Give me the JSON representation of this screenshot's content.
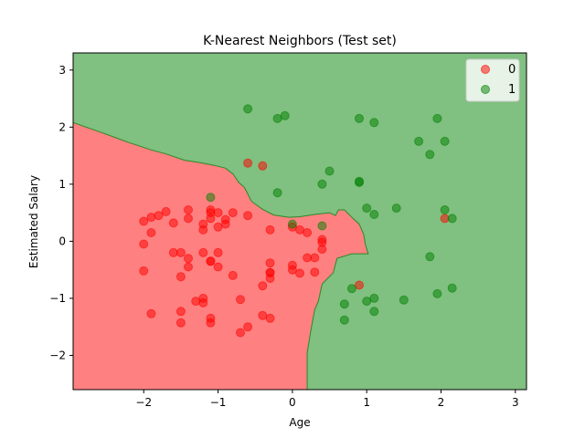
{
  "chart_data": {
    "type": "scatter",
    "title": "K-Nearest Neighbors (Test set)",
    "xlabel": "Age",
    "ylabel": "Estimated Salary",
    "xlim": [
      -2.95,
      3.15
    ],
    "ylim": [
      -2.6,
      3.3
    ],
    "xticks": [
      -2,
      -1,
      0,
      1,
      2,
      3
    ],
    "yticks": [
      -2,
      -1,
      0,
      1,
      2,
      3
    ],
    "grid": false,
    "legend_position": "top-right",
    "background_regions": [
      {
        "class": "0",
        "color": "#ff8080"
      },
      {
        "class": "1",
        "color": "#80c080"
      }
    ],
    "boundary_polygon_class0": [
      [
        -2.95,
        2.08
      ],
      [
        -2.6,
        1.92
      ],
      [
        -2.2,
        1.73
      ],
      [
        -1.9,
        1.6
      ],
      [
        -1.7,
        1.53
      ],
      [
        -1.45,
        1.42
      ],
      [
        -1.25,
        1.38
      ],
      [
        -1.05,
        1.33
      ],
      [
        -0.9,
        1.28
      ],
      [
        -0.8,
        1.18
      ],
      [
        -0.72,
        1.03
      ],
      [
        -0.65,
        0.95
      ],
      [
        -0.62,
        0.88
      ],
      [
        -0.55,
        0.7
      ],
      [
        -0.4,
        0.56
      ],
      [
        -0.25,
        0.46
      ],
      [
        -0.05,
        0.42
      ],
      [
        0.1,
        0.43
      ],
      [
        0.3,
        0.47
      ],
      [
        0.5,
        0.5
      ],
      [
        0.58,
        0.45
      ],
      [
        0.62,
        0.55
      ],
      [
        0.7,
        0.55
      ],
      [
        0.8,
        0.42
      ],
      [
        0.9,
        0.3
      ],
      [
        0.96,
        0.12
      ],
      [
        0.98,
        -0.05
      ],
      [
        1.02,
        -0.22
      ],
      [
        0.8,
        -0.22
      ],
      [
        0.6,
        -0.3
      ],
      [
        0.55,
        -0.55
      ],
      [
        0.4,
        -0.75
      ],
      [
        0.35,
        -1.05
      ],
      [
        0.3,
        -1.2
      ],
      [
        0.25,
        -1.55
      ],
      [
        0.2,
        -1.95
      ],
      [
        0.2,
        -2.6
      ],
      [
        -2.95,
        -2.6
      ]
    ],
    "series": [
      {
        "name": "0",
        "color": "#ff0000",
        "points": [
          [
            -2.0,
            0.35
          ],
          [
            -1.9,
            0.42
          ],
          [
            -1.8,
            0.45
          ],
          [
            -1.7,
            0.52
          ],
          [
            -1.6,
            0.32
          ],
          [
            -1.4,
            0.55
          ],
          [
            -1.4,
            0.4
          ],
          [
            -1.2,
            0.3
          ],
          [
            -1.1,
            0.55
          ],
          [
            -1.1,
            0.5
          ],
          [
            -1.1,
            0.4
          ],
          [
            -1.0,
            0.5
          ],
          [
            -0.9,
            0.38
          ],
          [
            -0.8,
            0.5
          ],
          [
            -0.9,
            0.3
          ],
          [
            -0.6,
            0.45
          ],
          [
            -1.2,
            0.2
          ],
          [
            -1.0,
            0.25
          ],
          [
            -0.3,
            0.2
          ],
          [
            0.0,
            0.25
          ],
          [
            0.1,
            0.2
          ],
          [
            0.2,
            0.15
          ],
          [
            -2.0,
            -0.05
          ],
          [
            -1.9,
            0.15
          ],
          [
            -1.6,
            -0.2
          ],
          [
            -1.5,
            -0.2
          ],
          [
            -1.4,
            -0.3
          ],
          [
            -1.4,
            -0.45
          ],
          [
            -1.5,
            -0.62
          ],
          [
            -1.2,
            -0.2
          ],
          [
            -1.0,
            -0.2
          ],
          [
            -1.1,
            -0.35
          ],
          [
            -1.1,
            -0.35
          ],
          [
            -1.0,
            -0.45
          ],
          [
            -0.8,
            -0.6
          ],
          [
            -0.3,
            -0.38
          ],
          [
            -0.3,
            -0.55
          ],
          [
            -0.3,
            -0.65
          ],
          [
            -0.4,
            -0.78
          ],
          [
            0.0,
            -0.42
          ],
          [
            0.0,
            -0.5
          ],
          [
            0.1,
            -0.56
          ],
          [
            0.2,
            -0.29
          ],
          [
            0.3,
            -0.29
          ],
          [
            0.3,
            -0.54
          ],
          [
            0.4,
            -0.14
          ],
          [
            0.4,
            0.03
          ],
          [
            0.4,
            -0.02
          ],
          [
            -2.0,
            -0.52
          ],
          [
            -1.9,
            -1.27
          ],
          [
            -1.5,
            -1.23
          ],
          [
            -1.5,
            -1.43
          ],
          [
            -1.3,
            -1.05
          ],
          [
            -1.2,
            -1.0
          ],
          [
            -1.2,
            -1.08
          ],
          [
            -1.1,
            -1.43
          ],
          [
            -1.1,
            -1.35
          ],
          [
            -0.7,
            -1.02
          ],
          [
            -0.7,
            -1.6
          ],
          [
            -0.6,
            -1.5
          ],
          [
            -0.4,
            -1.3
          ],
          [
            -0.3,
            -1.35
          ],
          [
            -0.6,
            1.37
          ],
          [
            -0.4,
            1.32
          ],
          [
            0.9,
            -0.77
          ],
          [
            2.05,
            0.4
          ],
          [
            -0.3,
            -0.55
          ]
        ]
      },
      {
        "name": "1",
        "color": "#008000",
        "points": [
          [
            -0.6,
            2.32
          ],
          [
            -0.2,
            2.15
          ],
          [
            -0.1,
            2.2
          ],
          [
            0.9,
            2.15
          ],
          [
            1.1,
            2.08
          ],
          [
            1.95,
            2.15
          ],
          [
            1.7,
            1.75
          ],
          [
            2.05,
            1.75
          ],
          [
            1.85,
            1.52
          ],
          [
            0.5,
            1.23
          ],
          [
            0.4,
            1.0
          ],
          [
            0.9,
            1.05
          ],
          [
            0.9,
            1.03
          ],
          [
            -0.2,
            0.85
          ],
          [
            1.0,
            0.58
          ],
          [
            1.1,
            0.47
          ],
          [
            1.4,
            0.58
          ],
          [
            2.05,
            0.55
          ],
          [
            2.15,
            0.4
          ],
          [
            0.4,
            0.27
          ],
          [
            0.0,
            0.3
          ],
          [
            -1.1,
            0.77
          ],
          [
            1.85,
            -0.27
          ],
          [
            0.7,
            -1.1
          ],
          [
            0.8,
            -0.83
          ],
          [
            1.0,
            -1.05
          ],
          [
            1.1,
            -1.0
          ],
          [
            1.1,
            -1.23
          ],
          [
            0.7,
            -1.38
          ],
          [
            1.5,
            -1.03
          ],
          [
            1.95,
            -0.92
          ],
          [
            2.15,
            -0.82
          ]
        ]
      }
    ]
  }
}
